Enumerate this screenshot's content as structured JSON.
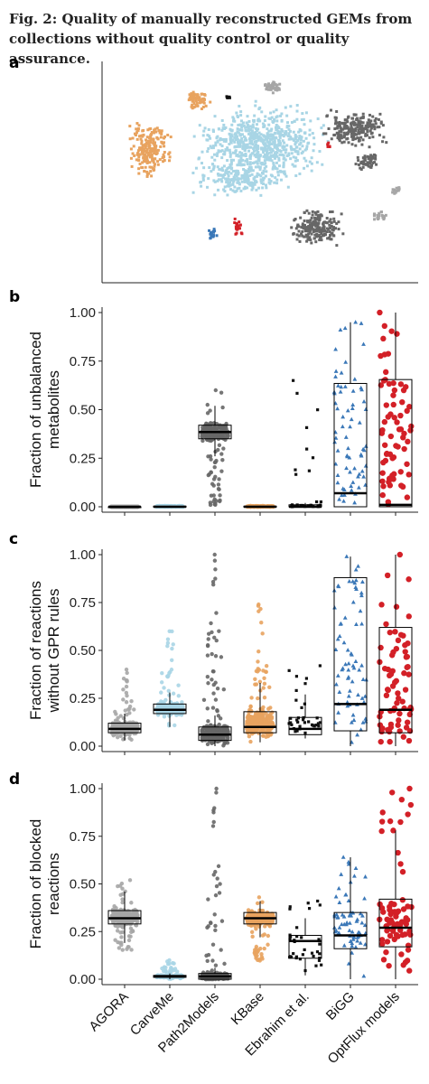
{
  "caption": "Fig. 2: Quality of manually reconstructed GEMs from collections without quality control or quality assurance.",
  "panels": {
    "a": "a",
    "b": "b",
    "c": "c",
    "d": "d"
  },
  "colors": {
    "AGORA": "#a6a6a6",
    "CarveMe": "#a8d5e5",
    "Path2Models": "#676767",
    "KBase": "#e8a35f",
    "Ebrahim et al.": "#111111",
    "BiGG": "#3b78b8",
    "OptFlux models": "#d32027"
  },
  "chart_data": [
    {
      "panel": "a",
      "type": "scatter",
      "title": "",
      "xlabel": "",
      "ylabel": "",
      "note": "t-SNE embedding, no axis ticks",
      "clusters": [
        {
          "collection": "CarveMe",
          "shape": "large central cloud"
        },
        {
          "collection": "KBase",
          "shape": "cluster at left"
        },
        {
          "collection": "Path2Models",
          "shape": "clusters at right and lower right"
        },
        {
          "collection": "AGORA",
          "shape": "small clusters at top and right"
        },
        {
          "collection": "BiGG",
          "shape": "small cluster at lower centre"
        },
        {
          "collection": "OptFlux models",
          "shape": "small cluster at lower centre"
        },
        {
          "collection": "Ebrahim et al.",
          "shape": "small cluster at top"
        }
      ]
    },
    {
      "panel": "b",
      "type": "box",
      "ylabel": "Fraction of unbalanced metabolites",
      "ylim": [
        0,
        1
      ],
      "yticks": [
        "0.00",
        "0.25",
        "0.50",
        "0.75",
        "1.00"
      ],
      "categories": [
        "AGORA",
        "CarveMe",
        "Path2Models",
        "KBase",
        "Ebrahim et al.",
        "BiGG",
        "OptFlux models"
      ],
      "boxes": [
        {
          "q1": 0.0,
          "median": 0.0,
          "q3": 0.0,
          "whisker_low": 0.0,
          "whisker_high": 0.0,
          "points_min": 0.0,
          "points_max": 0.0
        },
        {
          "q1": 0.0,
          "median": 0.0,
          "q3": 0.003,
          "whisker_low": 0.0,
          "whisker_high": 0.005,
          "points_min": 0.0,
          "points_max": 0.005
        },
        {
          "q1": 0.35,
          "median": 0.385,
          "q3": 0.42,
          "whisker_low": 0.26,
          "whisker_high": 0.52,
          "points_min": 0.0,
          "points_max": 0.6
        },
        {
          "q1": 0.0,
          "median": 0.0,
          "q3": 0.003,
          "whisker_low": 0.0,
          "whisker_high": 0.005,
          "points_min": 0.0,
          "points_max": 0.005
        },
        {
          "q1": 0.0,
          "median": 0.0,
          "q3": 0.01,
          "whisker_low": 0.0,
          "whisker_high": 0.02,
          "points_min": 0.0,
          "points_max": 0.65
        },
        {
          "q1": 0.0,
          "median": 0.07,
          "q3": 0.635,
          "whisker_low": 0.0,
          "whisker_high": 0.95,
          "points_min": 0.0,
          "points_max": 0.95
        },
        {
          "q1": 0.0,
          "median": 0.01,
          "q3": 0.655,
          "whisker_low": 0.0,
          "whisker_high": 1.0,
          "points_min": 0.0,
          "points_max": 1.0
        }
      ]
    },
    {
      "panel": "c",
      "type": "box",
      "ylabel": "Fraction of reactions without GPR rules",
      "ylim": [
        0,
        1
      ],
      "yticks": [
        "0.00",
        "0.25",
        "0.50",
        "0.75",
        "1.00"
      ],
      "categories": [
        "AGORA",
        "CarveMe",
        "Path2Models",
        "KBase",
        "Ebrahim et al.",
        "BiGG",
        "OptFlux models"
      ],
      "boxes": [
        {
          "q1": 0.07,
          "median": 0.09,
          "q3": 0.12,
          "whisker_low": 0.03,
          "whisker_high": 0.17,
          "points_min": 0.03,
          "points_max": 0.4
        },
        {
          "q1": 0.17,
          "median": 0.19,
          "q3": 0.22,
          "whisker_low": 0.1,
          "whisker_high": 0.28,
          "points_min": 0.1,
          "points_max": 0.6
        },
        {
          "q1": 0.03,
          "median": 0.06,
          "q3": 0.1,
          "whisker_low": 0.0,
          "whisker_high": 0.16,
          "points_min": 0.0,
          "points_max": 1.0
        },
        {
          "q1": 0.07,
          "median": 0.1,
          "q3": 0.18,
          "whisker_low": 0.02,
          "whisker_high": 0.33,
          "points_min": 0.02,
          "points_max": 0.74
        },
        {
          "q1": 0.06,
          "median": 0.09,
          "q3": 0.15,
          "whisker_low": 0.04,
          "whisker_high": 0.27,
          "points_min": 0.04,
          "points_max": 0.42
        },
        {
          "q1": 0.08,
          "median": 0.22,
          "q3": 0.88,
          "whisker_low": 0.0,
          "whisker_high": 0.99,
          "points_min": 0.0,
          "points_max": 0.99
        },
        {
          "q1": 0.07,
          "median": 0.19,
          "q3": 0.62,
          "whisker_low": 0.0,
          "whisker_high": 1.0,
          "points_min": 0.0,
          "points_max": 1.0
        }
      ]
    },
    {
      "panel": "d",
      "type": "box",
      "ylabel": "Fraction of blocked reactions",
      "ylim": [
        0,
        1
      ],
      "yticks": [
        "0.00",
        "0.25",
        "0.50",
        "0.75",
        "1.00"
      ],
      "categories": [
        "AGORA",
        "CarveMe",
        "Path2Models",
        "KBase",
        "Ebrahim et al.",
        "BiGG",
        "OptFlux models"
      ],
      "boxes": [
        {
          "q1": 0.29,
          "median": 0.32,
          "q3": 0.36,
          "whisker_low": 0.19,
          "whisker_high": 0.46,
          "points_min": 0.15,
          "points_max": 0.52
        },
        {
          "q1": 0.01,
          "median": 0.015,
          "q3": 0.02,
          "whisker_low": 0.0,
          "whisker_high": 0.03,
          "points_min": 0.0,
          "points_max": 0.1
        },
        {
          "q1": 0.0,
          "median": 0.015,
          "q3": 0.03,
          "whisker_low": 0.0,
          "whisker_high": 0.06,
          "points_min": 0.0,
          "points_max": 1.0
        },
        {
          "q1": 0.29,
          "median": 0.32,
          "q3": 0.35,
          "whisker_low": 0.22,
          "whisker_high": 0.41,
          "points_min": 0.09,
          "points_max": 0.43
        },
        {
          "q1": 0.11,
          "median": 0.2,
          "q3": 0.23,
          "whisker_low": 0.02,
          "whisker_high": 0.32,
          "points_min": 0.02,
          "points_max": 0.41
        },
        {
          "q1": 0.16,
          "median": 0.23,
          "q3": 0.35,
          "whisker_low": 0.0,
          "whisker_high": 0.64,
          "points_min": 0.0,
          "points_max": 0.64
        },
        {
          "q1": 0.17,
          "median": 0.27,
          "q3": 0.42,
          "whisker_low": 0.0,
          "whisker_high": 0.78,
          "points_min": 0.0,
          "points_max": 1.0
        }
      ]
    }
  ]
}
